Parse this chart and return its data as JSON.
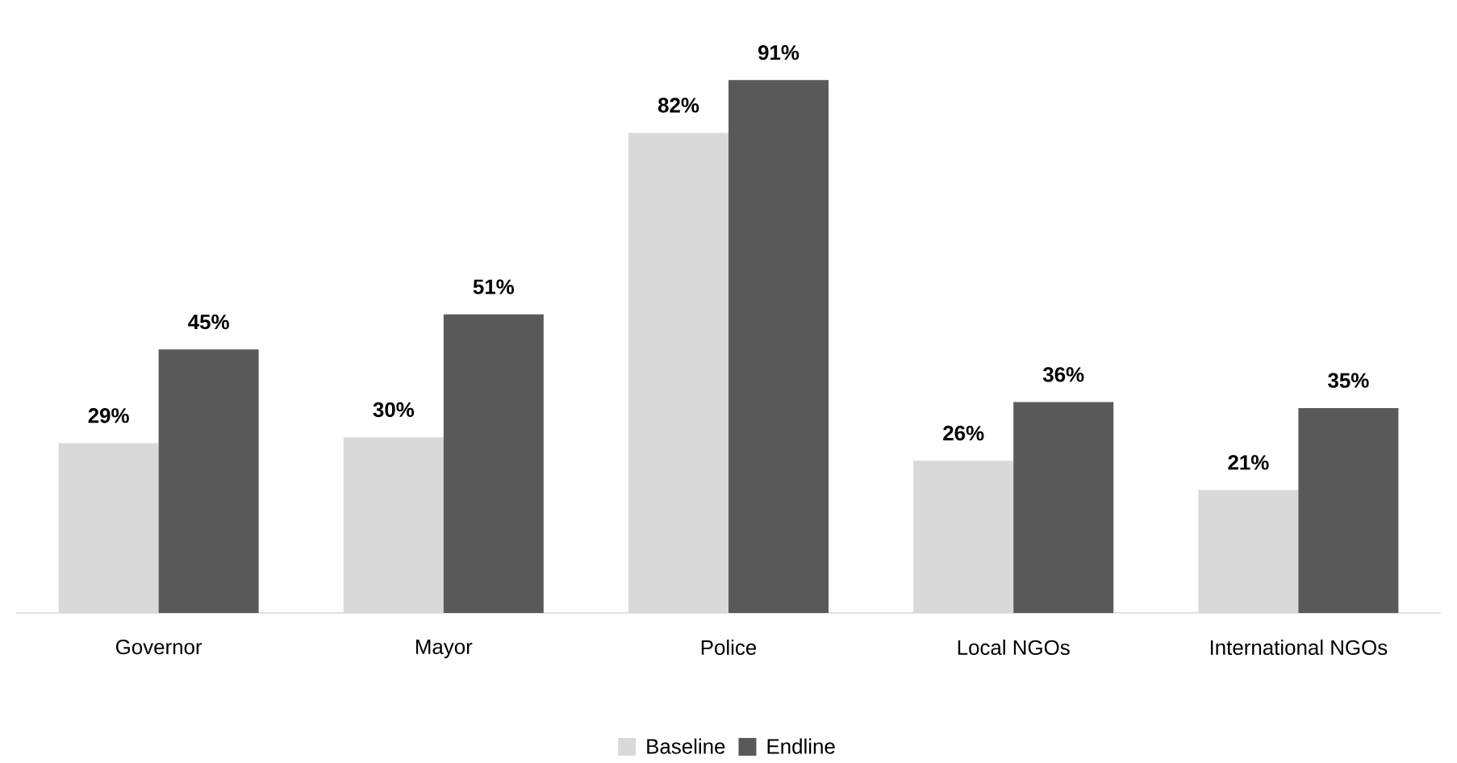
{
  "chart_data": {
    "type": "bar",
    "categories": [
      "Governor",
      "Mayor",
      "Police",
      "Local NGOs",
      "International NGOs"
    ],
    "series": [
      {
        "name": "Baseline",
        "color": "#d9d9d9",
        "values": [
          29,
          30,
          82,
          26,
          21
        ],
        "value_labels": [
          "29%",
          "30%",
          "82%",
          "26%",
          "21%"
        ]
      },
      {
        "name": "Endline",
        "color": "#595959",
        "values": [
          45,
          51,
          91,
          36,
          35
        ],
        "value_labels": [
          "45%",
          "51%",
          "91%",
          "36%",
          "35%"
        ]
      }
    ],
    "legend": "bottom"
  }
}
